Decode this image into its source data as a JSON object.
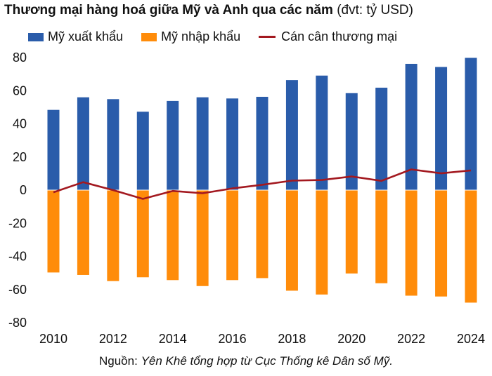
{
  "title": {
    "bold": "Thương mại hàng hoá giữa Mỹ và Anh qua các năm",
    "unit": "(đvt: tỷ USD)"
  },
  "source": {
    "prefix": "Nguồn:",
    "text": "Yên Khê tổng hợp từ Cục Thống kê Dân số Mỹ."
  },
  "colors": {
    "exports": "#2a5caa",
    "imports": "#ff8c0a",
    "balance": "#a31920"
  },
  "chart_data": {
    "type": "bar",
    "x": [
      2010,
      2011,
      2012,
      2013,
      2014,
      2015,
      2016,
      2017,
      2018,
      2019,
      2020,
      2021,
      2022,
      2023,
      2024
    ],
    "x_tick_labels": [
      "2010",
      "2012",
      "2014",
      "2016",
      "2018",
      "2020",
      "2022",
      "2024"
    ],
    "y_tick_labels": [
      "80",
      "60",
      "40",
      "20",
      "0",
      "-20",
      "-40",
      "-60",
      "-80"
    ],
    "ylim": [
      -80,
      80
    ],
    "series": [
      {
        "name": "Mỹ xuất khẩu",
        "type": "bar",
        "values": [
          48.4,
          56.0,
          54.9,
          47.3,
          53.8,
          56.0,
          55.3,
          56.3,
          66.4,
          69.1,
          58.5,
          61.8,
          76.2,
          74.3,
          79.8
        ]
      },
      {
        "name": "Mỹ nhập khẩu",
        "type": "bar",
        "values": [
          -49.7,
          -51.2,
          -54.9,
          -52.6,
          -54.3,
          -57.9,
          -54.3,
          -53.1,
          -60.7,
          -63.0,
          -50.3,
          -56.2,
          -63.7,
          -64.2,
          -67.9
        ]
      },
      {
        "name": "Cán cân thương mại",
        "type": "line",
        "values": [
          -1.3,
          4.8,
          0.0,
          -5.3,
          -0.5,
          -1.9,
          1.0,
          3.2,
          5.7,
          6.1,
          8.2,
          5.6,
          12.5,
          10.1,
          11.9
        ]
      }
    ]
  }
}
